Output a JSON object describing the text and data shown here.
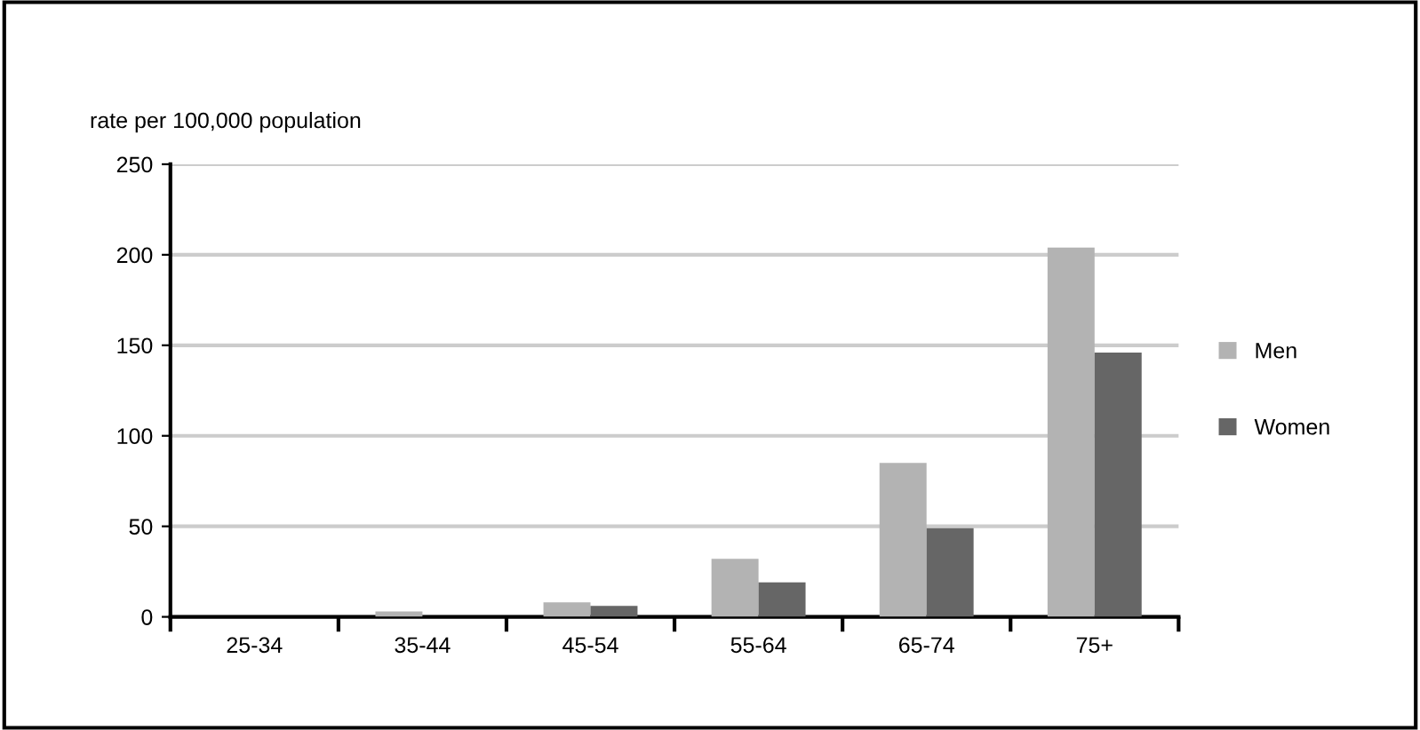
{
  "chart_data": {
    "type": "bar",
    "ylabel": "rate per 100,000 population",
    "categories": [
      "25-34",
      "35-44",
      "45-54",
      "55-64",
      "65-74",
      "75+"
    ],
    "series": [
      {
        "name": "Men",
        "color": "#b3b3b3",
        "values": [
          0,
          3,
          8,
          32,
          85,
          204
        ]
      },
      {
        "name": "Women",
        "color": "#666666",
        "values": [
          0,
          0,
          6,
          19,
          49,
          146
        ]
      }
    ],
    "ylim": [
      0,
      250
    ],
    "yticks": [
      0,
      50,
      100,
      150,
      200,
      250
    ],
    "grid": "y",
    "legend": "right"
  }
}
